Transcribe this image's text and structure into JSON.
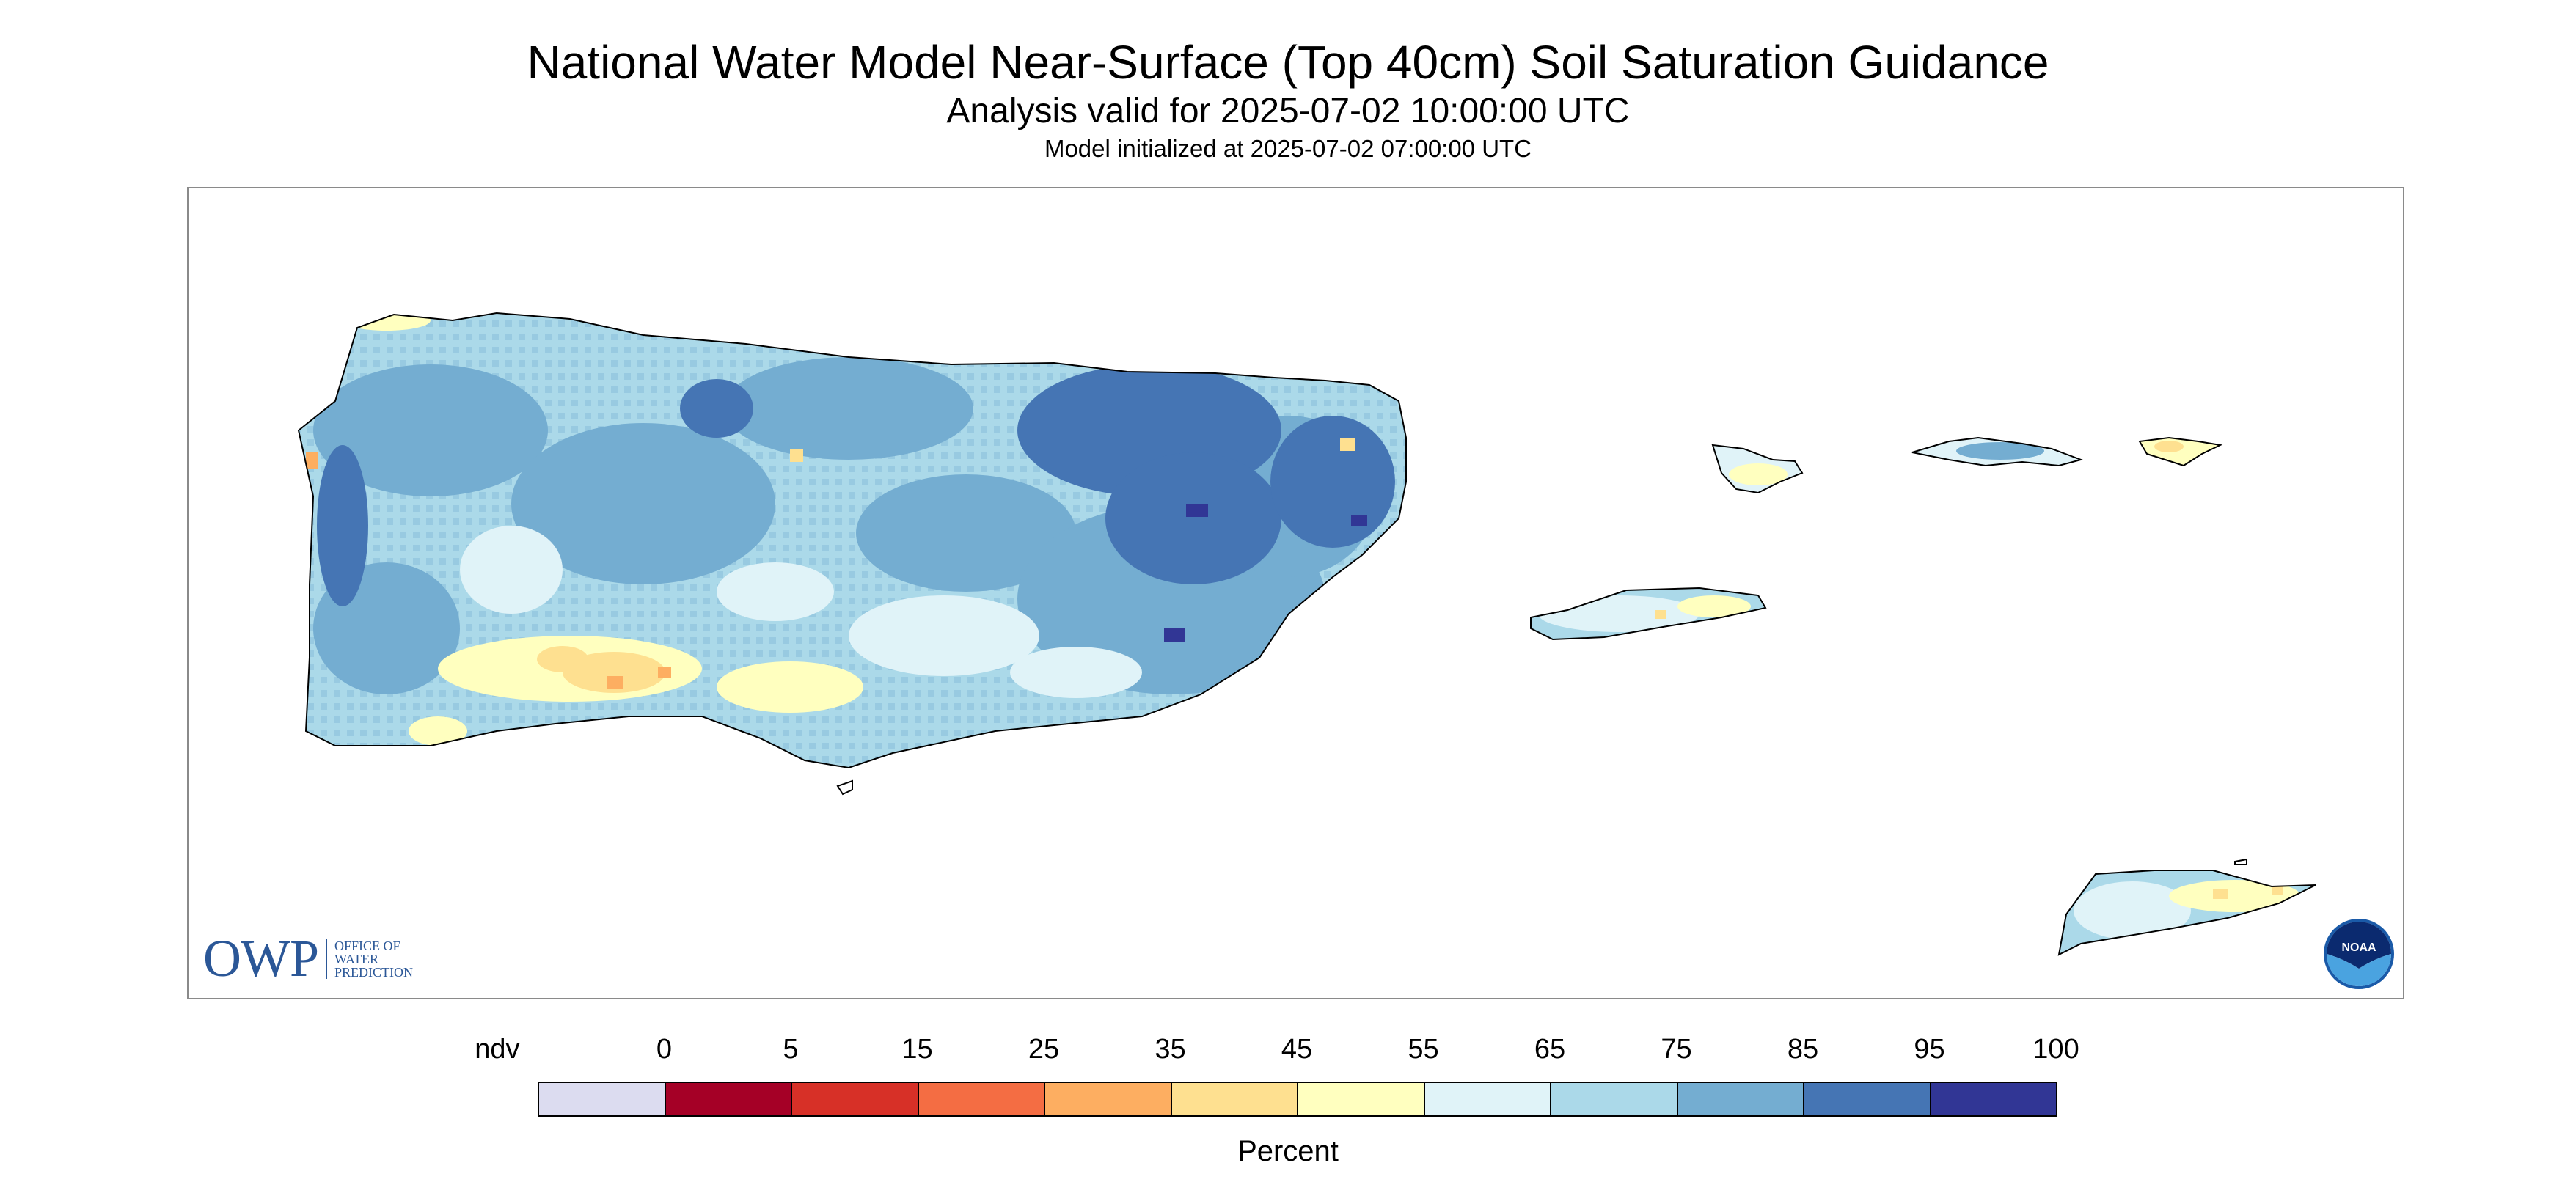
{
  "title": "National Water Model Near-Surface (Top 40cm) Soil Saturation Guidance",
  "subtitle": "Analysis valid for 2025-07-02 10:00:00 UTC",
  "init_line": "Model initialized at 2025-07-02 07:00:00 UTC",
  "logo_owp": {
    "mark": "OWP",
    "line1": "OFFICE OF",
    "line2": "WATER",
    "line3": "PREDICTION"
  },
  "logo_noaa": {
    "text": "NOAA"
  },
  "legend": {
    "unit": "Percent",
    "labels": [
      "ndv",
      "0",
      "5",
      "15",
      "25",
      "35",
      "45",
      "55",
      "65",
      "75",
      "85",
      "95",
      "100"
    ],
    "colors": [
      "#dcdcf0",
      "#a50026",
      "#d73027",
      "#f46d43",
      "#fdae61",
      "#fee090",
      "#ffffbf",
      "#e0f3f8",
      "#abd9e9",
      "#74add1",
      "#4575b4",
      "#313695"
    ]
  },
  "map": {
    "regions": [
      "Puerto Rico",
      "Vieques",
      "Culebra",
      "Saint Thomas",
      "Saint John",
      "Saint Croix",
      "Mona Island"
    ],
    "dominant_class": "65-75",
    "wettest_area": "northeast interior",
    "driest_area": "south coast"
  }
}
